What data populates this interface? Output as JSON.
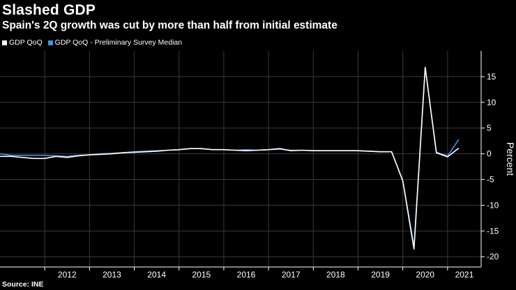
{
  "header": {
    "title": "Slashed GDP",
    "subtitle": "Spain's 2Q growth was cut by more than half from initial estimate"
  },
  "legend": [
    {
      "label": "GDP QoQ",
      "color": "#ffffff"
    },
    {
      "label": "GDP QoQ - Preliminary Survey Median",
      "color": "#4a90e2"
    }
  ],
  "footer": {
    "source": "Source: INE"
  },
  "chart_data": {
    "type": "line",
    "title": "Slashed GDP",
    "subtitle": "Spain's 2Q growth was cut by more than half from initial estimate",
    "ylabel": "Percent",
    "ylim": [
      -22,
      20
    ],
    "yticks": [
      15,
      10,
      5,
      0,
      -5,
      -10,
      -15,
      -20
    ],
    "ytick_labels": [
      "15",
      "10",
      "5",
      "0",
      "-5",
      "-10",
      "-15",
      "-20"
    ],
    "xlim": [
      2011.0,
      2021.75
    ],
    "year_labels": [
      "2012",
      "2013",
      "2014",
      "2015",
      "2016",
      "2017",
      "2018",
      "2019",
      "2020",
      "2021"
    ],
    "grid": true,
    "legend_position": "top-left",
    "series": [
      {
        "name": "GDP QoQ",
        "color": "#ffffff",
        "x": [
          2011.0,
          2011.25,
          2011.5,
          2011.75,
          2012.0,
          2012.25,
          2012.5,
          2012.75,
          2013.0,
          2013.25,
          2013.5,
          2013.75,
          2014.0,
          2014.25,
          2014.5,
          2014.75,
          2015.0,
          2015.25,
          2015.5,
          2015.75,
          2016.0,
          2016.25,
          2016.5,
          2016.75,
          2017.0,
          2017.25,
          2017.5,
          2017.75,
          2018.0,
          2018.25,
          2018.5,
          2018.75,
          2019.0,
          2019.25,
          2019.5,
          2019.75,
          2020.0,
          2020.25,
          2020.5,
          2020.75,
          2021.0,
          2021.25
        ],
        "y": [
          -0.5,
          -0.5,
          -0.7,
          -0.9,
          -0.9,
          -0.5,
          -0.7,
          -0.4,
          -0.2,
          -0.1,
          0.0,
          0.2,
          0.3,
          0.4,
          0.5,
          0.7,
          0.8,
          1.0,
          1.0,
          0.8,
          0.8,
          0.7,
          0.6,
          0.7,
          0.8,
          1.0,
          0.6,
          0.7,
          0.6,
          0.6,
          0.6,
          0.6,
          0.6,
          0.5,
          0.4,
          0.4,
          -5.3,
          -18.5,
          16.8,
          0.2,
          -0.6,
          1.1
        ]
      },
      {
        "name": "GDP QoQ - Preliminary Survey Median",
        "color": "#4a90e2",
        "x": [
          2011.0,
          2011.25,
          2011.5,
          2011.75,
          2012.0,
          2012.25,
          2012.5,
          2012.75,
          2013.0,
          2013.25,
          2013.5,
          2013.75,
          2014.0,
          2014.25,
          2014.5,
          2014.75,
          2015.0,
          2015.25,
          2015.5,
          2015.75,
          2016.0,
          2016.25,
          2016.5,
          2016.75,
          2017.0,
          2017.25,
          2017.5,
          2017.75,
          2018.0,
          2018.25,
          2018.5,
          2018.75,
          2019.0,
          2019.25,
          2019.5,
          2019.75,
          2020.0,
          2020.25,
          2020.5,
          2020.75,
          2021.0,
          2021.25
        ],
        "y": [
          0.0,
          -0.3,
          -0.3,
          -0.3,
          -0.3,
          -0.4,
          -0.5,
          -0.3,
          -0.2,
          0.0,
          0.1,
          0.2,
          0.4,
          0.5,
          0.6,
          0.7,
          0.8,
          1.0,
          1.0,
          0.8,
          0.8,
          0.7,
          0.8,
          0.7,
          0.8,
          0.9,
          0.7,
          0.7,
          0.6,
          0.6,
          0.6,
          0.6,
          0.6,
          0.5,
          0.4,
          0.4,
          -5.2,
          -18.0,
          16.8,
          0.3,
          -0.4,
          2.8
        ]
      }
    ]
  }
}
